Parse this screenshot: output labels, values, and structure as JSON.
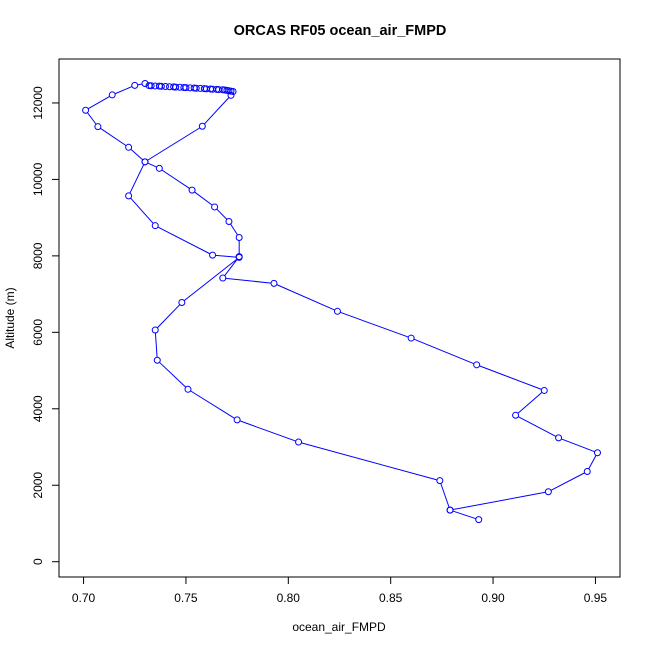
{
  "chart_data": {
    "type": "line",
    "title": "ORCAS RF05 ocean_air_FMPD",
    "xlabel": "ocean_air_FMPD",
    "ylabel": "Altitude (m)",
    "xlim": [
      0.688,
      0.962
    ],
    "ylim": [
      -400,
      13150
    ],
    "xticks": [
      0.7,
      0.75,
      0.8,
      0.85,
      0.9,
      0.95
    ],
    "xtick_labels": [
      "0.70",
      "0.75",
      "0.80",
      "0.85",
      "0.90",
      "0.95"
    ],
    "yticks": [
      0,
      2000,
      4000,
      6000,
      8000,
      10000,
      12000
    ],
    "ytick_labels": [
      "0",
      "2000",
      "4000",
      "6000",
      "8000",
      "10000",
      "12000"
    ],
    "grid": false,
    "legend": "none",
    "series_color": "#0000ff",
    "marker": "open-circle",
    "series": [
      {
        "x": [
          0.893,
          0.879,
          0.927,
          0.946,
          0.951,
          0.932,
          0.911,
          0.925,
          0.892,
          0.86,
          0.824,
          0.793,
          0.768,
          0.776,
          0.776,
          0.771,
          0.764,
          0.753,
          0.737,
          0.73,
          0.758,
          0.772,
          0.773,
          0.772,
          0.771,
          0.77,
          0.769,
          0.768,
          0.766,
          0.765,
          0.763,
          0.762,
          0.76,
          0.759,
          0.757,
          0.755,
          0.754,
          0.752,
          0.75,
          0.749,
          0.747,
          0.745,
          0.744,
          0.742,
          0.74,
          0.738,
          0.737,
          0.735,
          0.733,
          0.732,
          0.73,
          0.725,
          0.714,
          0.701,
          0.707,
          0.722,
          0.73,
          0.722,
          0.735,
          0.763,
          0.776,
          0.748,
          0.735,
          0.736,
          0.751,
          0.775,
          0.805,
          0.874,
          0.879
        ],
        "y": [
          1100,
          1350,
          1830,
          2360,
          2850,
          3240,
          3830,
          4480,
          5150,
          5850,
          6550,
          7280,
          7420,
          7980,
          8480,
          8900,
          9280,
          9720,
          10290,
          10460,
          11390,
          12200,
          12300,
          12310,
          12320,
          12330,
          12340,
          12345,
          12350,
          12355,
          12360,
          12365,
          12370,
          12375,
          12380,
          12385,
          12390,
          12395,
          12400,
          12405,
          12410,
          12415,
          12420,
          12425,
          12430,
          12435,
          12440,
          12445,
          12450,
          12455,
          12510,
          12460,
          12210,
          11810,
          11380,
          10840,
          10460,
          9570,
          8790,
          8020,
          7960,
          6780,
          6060,
          5270,
          4510,
          3710,
          3130,
          2120,
          1350
        ]
      }
    ]
  }
}
